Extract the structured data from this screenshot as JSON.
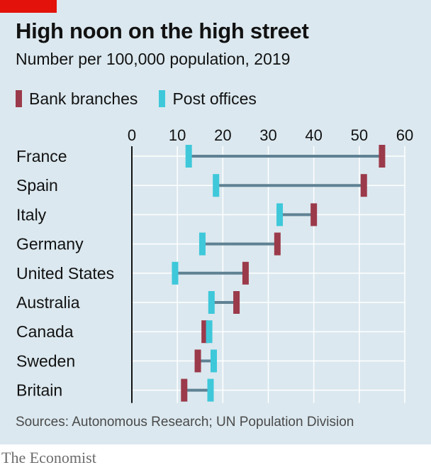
{
  "header": {
    "title": "High noon on the high street",
    "subtitle": "Number per 100,000 population, 2019"
  },
  "legend": {
    "bank_label": "Bank branches",
    "post_label": "Post offices"
  },
  "colors": {
    "bank": "#9b3a4a",
    "post": "#3ec8da",
    "connector": "#5f8293",
    "panel": "#dbe8ef",
    "brand_red": "#e3120b"
  },
  "chart_data": {
    "type": "dumbbell",
    "title": "High noon on the high street",
    "subtitle": "Number per 100,000 population, 2019",
    "xlim": [
      0,
      60
    ],
    "x_ticks": [
      0,
      10,
      20,
      30,
      40,
      50,
      60
    ],
    "tick_position": "top",
    "grid": true,
    "categories": [
      "France",
      "Spain",
      "Italy",
      "Germany",
      "United States",
      "Australia",
      "Canada",
      "Sweden",
      "Britain"
    ],
    "series": [
      {
        "name": "Bank branches",
        "values": [
          55,
          51,
          40,
          32,
          25,
          23,
          16,
          14.5,
          11.5
        ]
      },
      {
        "name": "Post offices",
        "values": [
          12.5,
          18.5,
          32.5,
          15.5,
          9.5,
          17.5,
          17,
          18,
          17.3
        ]
      }
    ]
  },
  "footer": {
    "source": "Sources: Autonomous Research; UN Population Division",
    "brand": "The Economist"
  }
}
